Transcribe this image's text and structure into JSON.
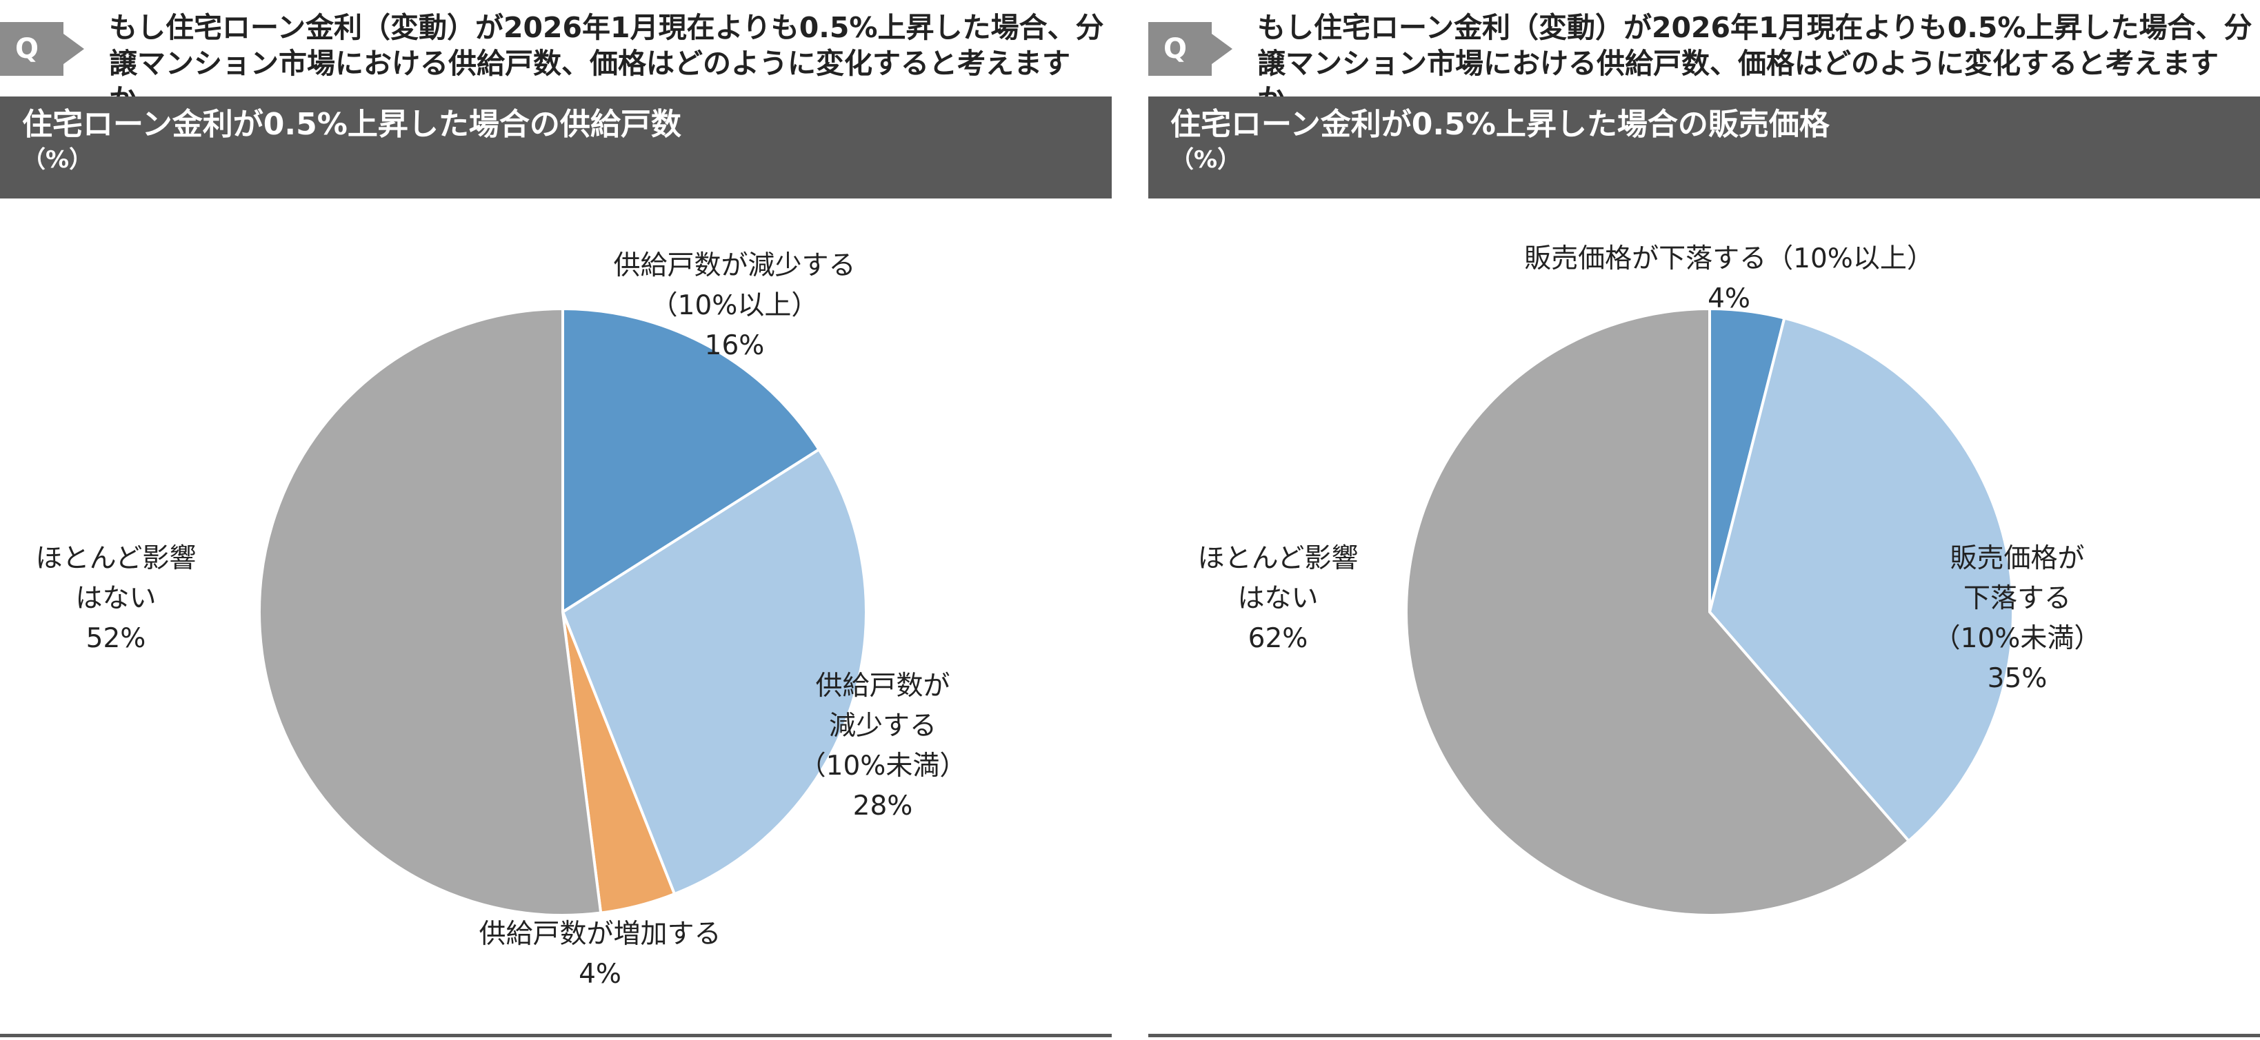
{
  "panels": [
    {
      "q_badge": "Q",
      "question": "もし住宅ローン金利（変動）が2026年1月現在よりも0.5%上昇した場合、分譲マンション市場における供給戸数、価格はどのように変化すると考えますか。",
      "title": "住宅ローン金利が0.5%上昇した場合の供給戸数",
      "unit": "（%）"
    },
    {
      "q_badge": "Q",
      "question": "もし住宅ローン金利（変動）が2026年1月現在よりも0.5%上昇した場合、分譲マンション市場における供給戸数、価格はどのように変化すると考えますか。",
      "title": "住宅ローン金利が0.5%上昇した場合の販売価格",
      "unit": "（%）"
    }
  ],
  "chart_data": [
    {
      "type": "pie",
      "title": "住宅ローン金利が0.5%上昇した場合の供給戸数",
      "unit": "（%）",
      "slices": [
        {
          "label": [
            "供給戸数が減少する",
            "（10%以上）"
          ],
          "value": 16,
          "value_label": "16%",
          "color": "#5b97c9"
        },
        {
          "label": [
            "供給戸数が",
            "減少する",
            "（10%未満）"
          ],
          "value": 28,
          "value_label": "28%",
          "color": "#abcae6"
        },
        {
          "label": [
            "供給戸数が増加する"
          ],
          "value": 4,
          "value_label": "4%",
          "color": "#eea765"
        },
        {
          "label": [
            "ほとんど影響",
            "はない"
          ],
          "value": 52,
          "value_label": "52%",
          "color": "#a9a9a9"
        }
      ]
    },
    {
      "type": "pie",
      "title": "住宅ローン金利が0.5%上昇した場合の販売価格",
      "unit": "（%）",
      "slices": [
        {
          "label": [
            "販売価格が下落する（10%以上）"
          ],
          "value": 4,
          "value_label": "4%",
          "color": "#5b97c9"
        },
        {
          "label": [
            "販売価格が",
            "下落する",
            "（10%未満）"
          ],
          "value": 35,
          "value_label": "35%",
          "color": "#abcae6"
        },
        {
          "label": [
            "ほとんど影響",
            "はない"
          ],
          "value": 62,
          "value_label": "62%",
          "color": "#a9a9a9"
        }
      ]
    }
  ]
}
